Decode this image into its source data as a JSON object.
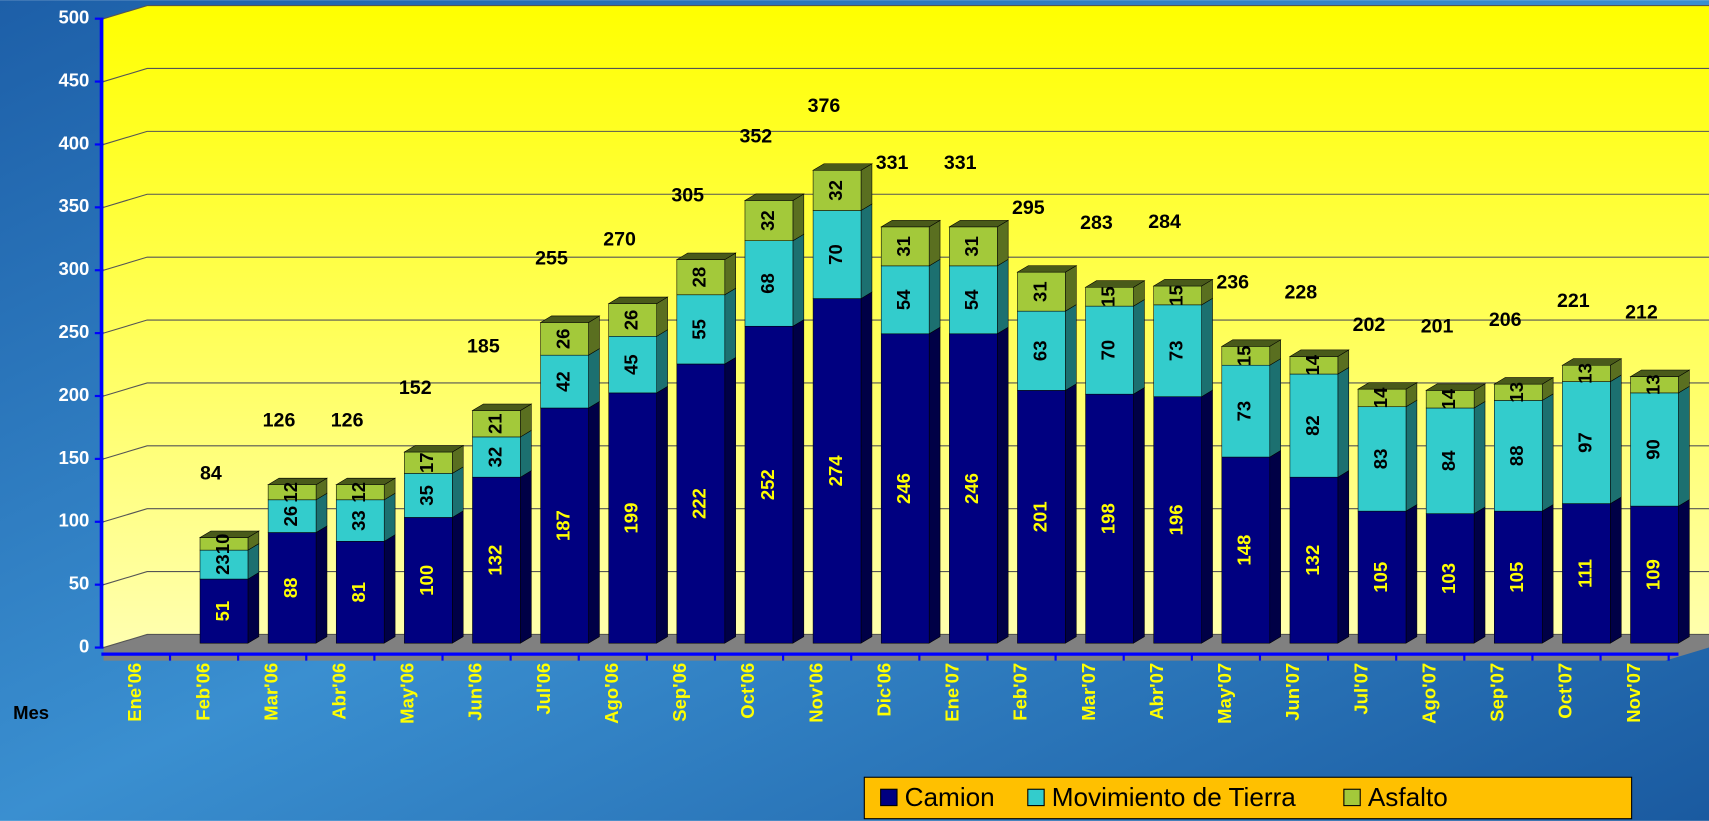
{
  "chart_data": {
    "type": "bar3d_stacked",
    "x_label": "Mes",
    "categories": [
      "Ene'06",
      "Feb'06",
      "Mar'06",
      "Abr'06",
      "May'06",
      "Jun'06",
      "Jul'06",
      "Ago'06",
      "Sep'06",
      "Oct'06",
      "Nov'06",
      "Dic'06",
      "Ene'07",
      "Feb'07",
      "Mar'07",
      "Abr'07",
      "May'07",
      "Jun'07",
      "Jul'07",
      "Ago'07",
      "Sep'07",
      "Oct'07",
      "Nov'07"
    ],
    "series": [
      {
        "name": "Camion",
        "color": "#000080",
        "values": [
          null,
          51,
          88,
          81,
          100,
          132,
          187,
          199,
          222,
          252,
          274,
          246,
          246,
          201,
          198,
          196,
          148,
          132,
          105,
          103,
          105,
          111,
          109
        ]
      },
      {
        "name": "Movimiento de Tierra",
        "color": "#33cccc",
        "values": [
          null,
          23,
          26,
          33,
          35,
          32,
          42,
          45,
          55,
          68,
          70,
          54,
          54,
          63,
          70,
          73,
          73,
          82,
          83,
          84,
          88,
          97,
          90
        ]
      },
      {
        "name": "Asfalto",
        "color": "#a3c93a",
        "values": [
          null,
          10,
          12,
          12,
          17,
          21,
          26,
          26,
          28,
          32,
          32,
          31,
          31,
          31,
          15,
          15,
          15,
          14,
          14,
          14,
          13,
          13,
          13
        ]
      }
    ],
    "totals": [
      null,
      84,
      126,
      126,
      152,
      185,
      255,
      270,
      305,
      352,
      376,
      331,
      331,
      295,
      283,
      284,
      236,
      228,
      202,
      201,
      206,
      221,
      212
    ],
    "ylim": [
      0,
      500
    ],
    "yticks": [
      0,
      50,
      100,
      150,
      200,
      250,
      300,
      350,
      400,
      450,
      500
    ],
    "grid": true,
    "legend": "bottom-right"
  }
}
